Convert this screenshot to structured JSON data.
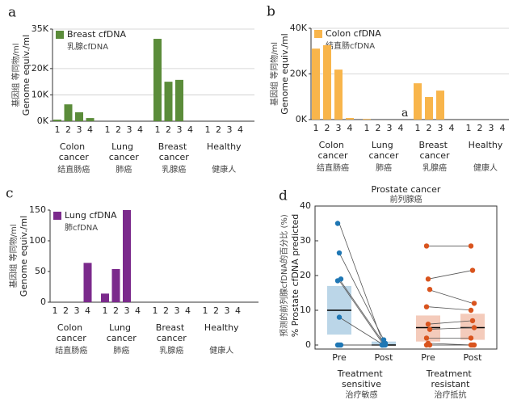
{
  "chart_data": [
    {
      "type": "bar",
      "panel": "a",
      "ylabel": "Genome equiv./ml",
      "ylabel_cn": "基因组 等同物/ml",
      "legend": "Breast cfDNA",
      "legend_cn": "乳腺cfDNA",
      "color": "#5b8c3a",
      "ylim": [
        0,
        35000
      ],
      "yticks": [
        {
          "value": 0,
          "label": "0K"
        },
        {
          "value": 10000,
          "label": "10K"
        },
        {
          "value": 20000,
          "label": "20K"
        },
        {
          "value": 35000,
          "label": "35K"
        }
      ],
      "grid": true,
      "categories": [
        "Colon cancer",
        "Lung cancer",
        "Breast cancer",
        "Healthy"
      ],
      "categories_cn": [
        "结直肠癌",
        "肺癌",
        "乳腺癌",
        "健康人"
      ],
      "sample_labels": [
        1,
        2,
        3,
        4
      ],
      "values": [
        [
          600,
          6400,
          3400,
          1200
        ],
        [
          0,
          0,
          0,
          0
        ],
        [
          31300,
          15000,
          15700,
          0
        ],
        [
          0,
          0,
          0,
          0
        ]
      ]
    },
    {
      "type": "bar",
      "panel": "b",
      "ylabel": "Genome equiv./ml",
      "ylabel_cn": "基因组 等同物/ml",
      "legend": "Colon cfDNA",
      "legend_cn": "结直肠cfDNA",
      "color": "#f8b54b",
      "annotation": "a",
      "ylim": [
        0,
        40000
      ],
      "yticks": [
        {
          "value": 0,
          "label": "0K"
        },
        {
          "value": 20000,
          "label": "20K"
        },
        {
          "value": 40000,
          "label": "40K"
        }
      ],
      "grid": true,
      "categories": [
        "Colon cancer",
        "Lung cancer",
        "Breast cancer",
        "Healthy"
      ],
      "categories_cn": [
        "结直肠癌",
        "肺癌",
        "乳腺癌",
        "健康人"
      ],
      "sample_labels": [
        1,
        2,
        3,
        4
      ],
      "values": [
        [
          31100,
          32600,
          21900,
          700
        ],
        [
          300,
          0,
          0,
          0
        ],
        [
          15900,
          9900,
          12700,
          0
        ],
        [
          0,
          0,
          0,
          0
        ]
      ]
    },
    {
      "type": "bar",
      "panel": "c",
      "ylabel": "Genome equiv./ml",
      "ylabel_cn": "基因组 等同物/ml",
      "legend": "Lung cfDNA",
      "legend_cn": "肺cfDNA",
      "color": "#7b2a8c",
      "ylim": [
        0,
        150
      ],
      "yticks": [
        0,
        50,
        100,
        150
      ],
      "grid": false,
      "categories": [
        "Colon cancer",
        "Lung cancer",
        "Breast cancer",
        "Healthy"
      ],
      "categories_cn": [
        "结直肠癌",
        "肺癌",
        "乳腺癌",
        "健康人"
      ],
      "sample_labels": [
        1,
        2,
        3,
        4
      ],
      "values": [
        [
          0,
          0,
          0,
          64
        ],
        [
          14,
          54,
          150,
          0
        ],
        [
          0,
          0,
          0,
          0
        ],
        [
          0,
          0,
          0,
          0
        ]
      ]
    },
    {
      "type": "strip",
      "panel": "d",
      "title": "Prostate cancer",
      "title_cn": "前列腺癌",
      "ylabel": "% Prostate cfDNA predicted",
      "ylabel_cn": "预测的前列腺cfDNA的百分比 (%)",
      "ylim": [
        0,
        40
      ],
      "yticks": [
        0,
        10,
        20,
        30,
        40
      ],
      "xticks": [
        "Pre",
        "Post"
      ],
      "groups": [
        {
          "name": "Treatment sensitive",
          "name_cn": "治疗敏感",
          "color": "#1f77b4",
          "pre": [
            35,
            26.5,
            19,
            18.5,
            8,
            0,
            0,
            0
          ],
          "post": [
            0,
            1.5,
            0.5,
            0,
            0,
            0,
            0,
            0
          ],
          "box_pre": [
            3,
            10,
            17
          ],
          "box_post": [
            0,
            0,
            1
          ]
        },
        {
          "name": "Treatment resistant",
          "name_cn": "治疗抵抗",
          "color": "#d9541e",
          "pre": [
            28.5,
            19,
            16,
            11,
            6,
            4.5,
            2,
            0.5,
            0,
            0
          ],
          "post": [
            28.5,
            21.5,
            12,
            10,
            7,
            5,
            2,
            0,
            0,
            0
          ],
          "box_pre": [
            1,
            5,
            8.5
          ],
          "box_post": [
            1.5,
            5,
            9
          ]
        }
      ]
    }
  ]
}
